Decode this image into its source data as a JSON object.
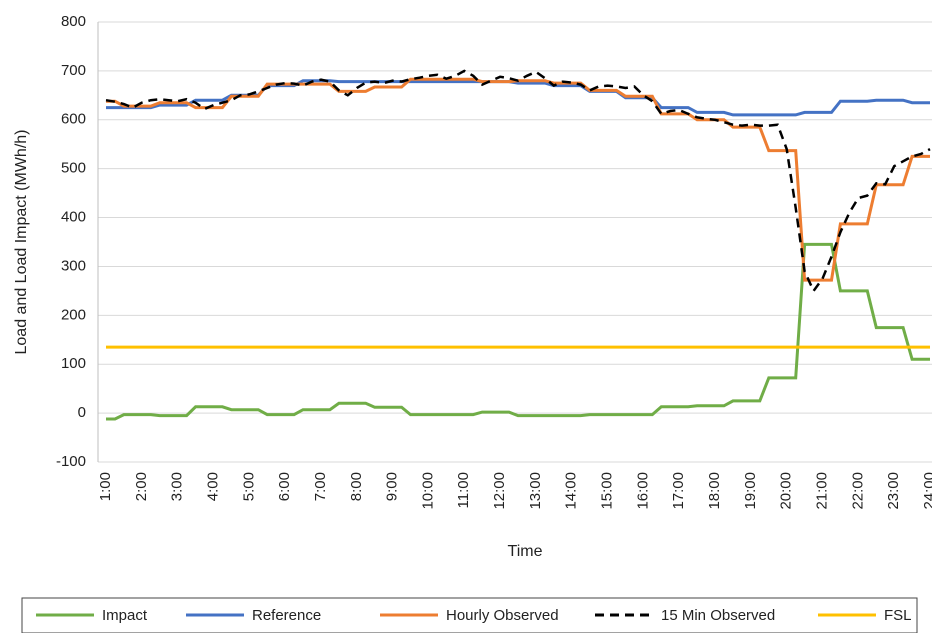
{
  "chart_data": {
    "type": "line",
    "y_label": "Load and Load Impact (MWh/h)",
    "x_label": "Time",
    "categories": [
      "1:00",
      null,
      null,
      null,
      "2:00",
      null,
      null,
      null,
      "3:00",
      null,
      null,
      null,
      "4:00",
      null,
      null,
      null,
      "5:00",
      null,
      null,
      null,
      "6:00",
      null,
      null,
      null,
      "7:00",
      null,
      null,
      null,
      "8:00",
      null,
      null,
      null,
      "9:00",
      null,
      null,
      null,
      "10:00",
      null,
      null,
      null,
      "11:00",
      null,
      null,
      null,
      "12:00",
      null,
      null,
      null,
      "13:00",
      null,
      null,
      null,
      "14:00",
      null,
      null,
      null,
      "15:00",
      null,
      null,
      null,
      "16:00",
      null,
      null,
      null,
      "17:00",
      null,
      null,
      null,
      "18:00",
      null,
      null,
      null,
      "19:00",
      null,
      null,
      null,
      "20:00",
      null,
      null,
      null,
      "21:00",
      null,
      null,
      null,
      "22:00",
      null,
      null,
      null,
      "23:00",
      null,
      null,
      null,
      "24:00"
    ],
    "series": [
      {
        "name": "Impact",
        "color": "#70ad47",
        "values": [
          -12,
          -12,
          -3,
          -3,
          -3,
          -3,
          -5,
          -5,
          -5,
          -5,
          13,
          13,
          13,
          13,
          7,
          7,
          7,
          7,
          -3,
          -3,
          -3,
          -3,
          7,
          7,
          7,
          7,
          20,
          20,
          20,
          20,
          12,
          12,
          12,
          12,
          -3,
          -3,
          -3,
          -3,
          -3,
          -3,
          -3,
          -3,
          2,
          2,
          2,
          2,
          -5,
          -5,
          -5,
          -5,
          -5,
          -5,
          -5,
          -5,
          -3,
          -3,
          -3,
          -3,
          -3,
          -3,
          -3,
          -3,
          13,
          13,
          13,
          13,
          15,
          15,
          15,
          15,
          25,
          25,
          25,
          25,
          72,
          72,
          72,
          72,
          345,
          345,
          345,
          345,
          250,
          250,
          250,
          250,
          175,
          175,
          175,
          175,
          110,
          110,
          110
        ]
      },
      {
        "name": "Reference",
        "color": "#4472c4",
        "values": [
          625,
          625,
          625,
          625,
          625,
          625,
          630,
          630,
          630,
          630,
          640,
          640,
          640,
          640,
          650,
          650,
          650,
          650,
          670,
          670,
          670,
          670,
          680,
          680,
          680,
          680,
          678,
          678,
          678,
          678,
          678,
          678,
          678,
          678,
          678,
          678,
          678,
          678,
          678,
          678,
          678,
          678,
          678,
          678,
          678,
          678,
          675,
          675,
          675,
          675,
          670,
          670,
          670,
          670,
          658,
          658,
          658,
          658,
          645,
          645,
          645,
          645,
          625,
          625,
          625,
          625,
          615,
          615,
          615,
          615,
          610,
          610,
          610,
          610,
          610,
          610,
          610,
          610,
          615,
          615,
          615,
          615,
          638,
          638,
          638,
          638,
          640,
          640,
          640,
          640,
          635,
          635,
          635
        ]
      },
      {
        "name": "Hourly Observed",
        "color": "#ed7d31",
        "values": [
          638,
          638,
          628,
          628,
          628,
          628,
          635,
          635,
          635,
          635,
          625,
          625,
          625,
          625,
          648,
          648,
          648,
          648,
          673,
          673,
          673,
          673,
          673,
          673,
          673,
          673,
          658,
          658,
          658,
          658,
          667,
          667,
          667,
          667,
          683,
          683,
          683,
          683,
          683,
          683,
          683,
          683,
          678,
          678,
          678,
          678,
          680,
          680,
          680,
          680,
          675,
          675,
          675,
          675,
          660,
          660,
          660,
          660,
          648,
          648,
          648,
          648,
          612,
          612,
          612,
          612,
          600,
          600,
          600,
          600,
          585,
          585,
          585,
          585,
          537,
          537,
          537,
          537,
          272,
          272,
          272,
          272,
          387,
          387,
          387,
          387,
          467,
          467,
          467,
          467,
          525,
          525,
          525
        ]
      },
      {
        "name": "15 Min Observed",
        "color": "#000000",
        "dashed": true,
        "values": [
          640,
          637,
          632,
          625,
          635,
          640,
          642,
          640,
          638,
          642,
          635,
          622,
          630,
          635,
          640,
          650,
          652,
          658,
          665,
          672,
          675,
          674,
          670,
          678,
          682,
          678,
          660,
          650,
          665,
          676,
          678,
          675,
          680,
          678,
          683,
          686,
          690,
          692,
          684,
          690,
          700,
          690,
          672,
          680,
          688,
          685,
          680,
          690,
          698,
          685,
          670,
          678,
          676,
          672,
          660,
          668,
          670,
          668,
          665,
          668,
          650,
          638,
          612,
          618,
          620,
          612,
          605,
          602,
          600,
          595,
          590,
          588,
          590,
          588,
          588,
          590,
          540,
          420,
          290,
          250,
          275,
          320,
          370,
          410,
          440,
          445,
          470,
          468,
          505,
          515,
          525,
          530,
          540
        ]
      },
      {
        "name": "FSL",
        "color": "#ffc000",
        "values": [
          135,
          135,
          135,
          135,
          135,
          135,
          135,
          135,
          135,
          135,
          135,
          135,
          135,
          135,
          135,
          135,
          135,
          135,
          135,
          135,
          135,
          135,
          135,
          135,
          135,
          135,
          135,
          135,
          135,
          135,
          135,
          135,
          135,
          135,
          135,
          135,
          135,
          135,
          135,
          135,
          135,
          135,
          135,
          135,
          135,
          135,
          135,
          135,
          135,
          135,
          135,
          135,
          135,
          135,
          135,
          135,
          135,
          135,
          135,
          135,
          135,
          135,
          135,
          135,
          135,
          135,
          135,
          135,
          135,
          135,
          135,
          135,
          135,
          135,
          135,
          135,
          135,
          135,
          135,
          135,
          135,
          135,
          135,
          135,
          135,
          135,
          135,
          135,
          135,
          135,
          135,
          135,
          135
        ]
      }
    ],
    "ylim": [
      -100,
      800
    ],
    "yticks": [
      -100,
      0,
      100,
      200,
      300,
      400,
      500,
      600,
      700,
      800
    ],
    "grid": true,
    "legend": "bottom"
  }
}
